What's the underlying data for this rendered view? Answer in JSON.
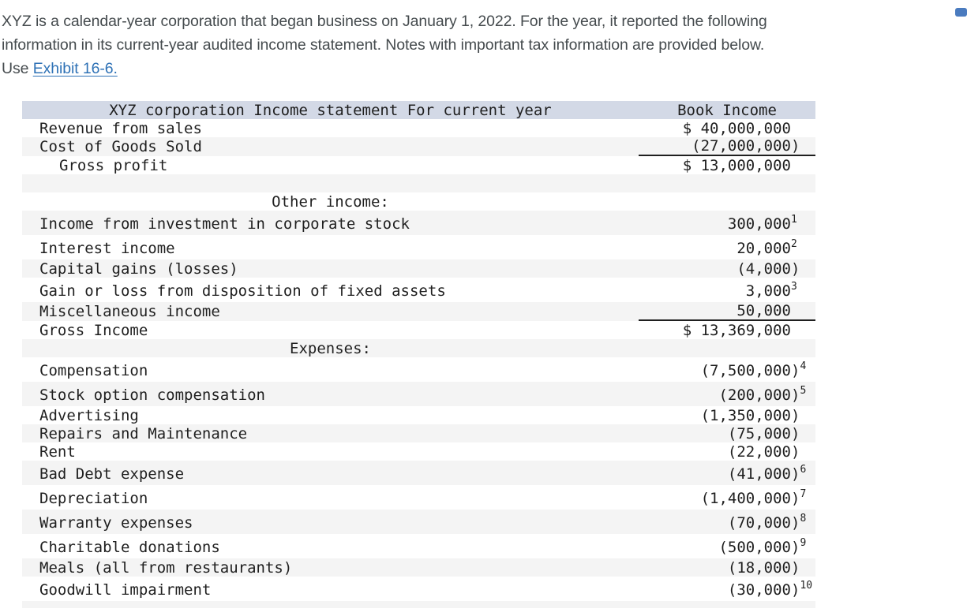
{
  "intro": {
    "line1": "XYZ is a calendar-year corporation that began business on January 1, 2022. For the year, it reported the following",
    "line2": "information in its current-year audited income statement. Notes with important tax information are provided below.",
    "line3_prefix": "Use ",
    "link_text": "Exhibit 16-6."
  },
  "table": {
    "title": "XYZ corporation Income statement For current year",
    "value_header": "Book Income",
    "rows": [
      {
        "type": "item",
        "label": "Revenue from sales",
        "value": "$ 40,000,000",
        "note": ""
      },
      {
        "type": "item",
        "label": "Cost of Goods Sold",
        "value": "(27,000,000)",
        "note": "",
        "underline": true
      },
      {
        "type": "item",
        "label": "Gross profit",
        "value": "$ 13,000,000",
        "note": "",
        "indent": true
      },
      {
        "type": "blank"
      },
      {
        "type": "section",
        "label": "Other income:"
      },
      {
        "type": "item",
        "label": "Income from investment in corporate stock",
        "value": "300,000",
        "note": "1"
      },
      {
        "type": "item",
        "label": "Interest income",
        "value": "20,000",
        "note": "2"
      },
      {
        "type": "item",
        "label": "Capital gains (losses)",
        "value": "(4,000)",
        "note": ""
      },
      {
        "type": "item",
        "label": "Gain or loss from disposition of fixed assets",
        "value": "3,000",
        "note": "3"
      },
      {
        "type": "item",
        "label": "Miscellaneous income",
        "value": "50,000",
        "note": "",
        "underline": true
      },
      {
        "type": "item",
        "label": "Gross Income",
        "value": "$ 13,369,000",
        "note": ""
      },
      {
        "type": "section",
        "label": "Expenses:"
      },
      {
        "type": "item",
        "label": "Compensation",
        "value": "(7,500,000)",
        "note": "4"
      },
      {
        "type": "item",
        "label": "Stock option compensation",
        "value": "(200,000)",
        "note": "5"
      },
      {
        "type": "item",
        "label": "Advertising",
        "value": "(1,350,000)",
        "note": ""
      },
      {
        "type": "item",
        "label": "Repairs and Maintenance",
        "value": "(75,000)",
        "note": ""
      },
      {
        "type": "item",
        "label": "Rent",
        "value": "(22,000)",
        "note": ""
      },
      {
        "type": "item",
        "label": "Bad Debt expense",
        "value": "(41,000)",
        "note": "6"
      },
      {
        "type": "item",
        "label": "Depreciation",
        "value": "(1,400,000)",
        "note": "7"
      },
      {
        "type": "item",
        "label": "Warranty expenses",
        "value": "(70,000)",
        "note": "8"
      },
      {
        "type": "item",
        "label": "Charitable donations",
        "value": "(500,000)",
        "note": "9"
      },
      {
        "type": "item",
        "label": "Meals (all from restaurants)",
        "value": "(18,000)",
        "note": ""
      },
      {
        "type": "item",
        "label": "Goodwill impairment",
        "value": "(30,000)",
        "note": "10"
      },
      {
        "type": "partial"
      }
    ]
  },
  "colors": {
    "header_row_bg": "#d3d9e6",
    "alt_row_bg": "#f4f4f4",
    "link": "#2f72b6",
    "accent_square": "#4a7bbf",
    "table_text": "#1f1f1f",
    "intro_text": "#454b4e"
  }
}
